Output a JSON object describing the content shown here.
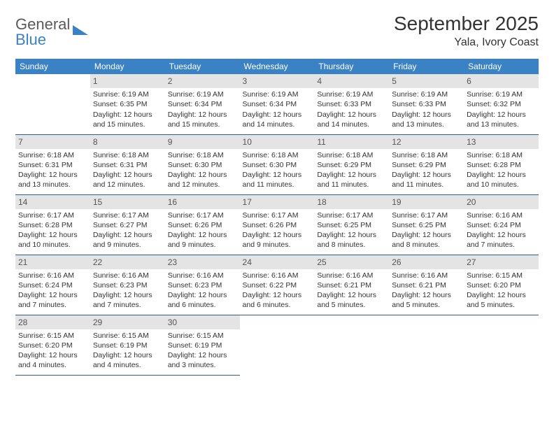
{
  "logo": {
    "word1": "General",
    "word2": "Blue"
  },
  "title": "September 2025",
  "location": "Yala, Ivory Coast",
  "colors": {
    "header_bg": "#3b82c4",
    "header_text": "#ffffff",
    "daynum_bg": "#e4e4e4",
    "row_border": "#2f5e8a",
    "text": "#333333"
  },
  "daysOfWeek": [
    "Sunday",
    "Monday",
    "Tuesday",
    "Wednesday",
    "Thursday",
    "Friday",
    "Saturday"
  ],
  "weeks": [
    [
      null,
      {
        "n": "1",
        "sr": "6:19 AM",
        "ss": "6:35 PM",
        "dl": "12 hours and 15 minutes."
      },
      {
        "n": "2",
        "sr": "6:19 AM",
        "ss": "6:34 PM",
        "dl": "12 hours and 15 minutes."
      },
      {
        "n": "3",
        "sr": "6:19 AM",
        "ss": "6:34 PM",
        "dl": "12 hours and 14 minutes."
      },
      {
        "n": "4",
        "sr": "6:19 AM",
        "ss": "6:33 PM",
        "dl": "12 hours and 14 minutes."
      },
      {
        "n": "5",
        "sr": "6:19 AM",
        "ss": "6:33 PM",
        "dl": "12 hours and 13 minutes."
      },
      {
        "n": "6",
        "sr": "6:19 AM",
        "ss": "6:32 PM",
        "dl": "12 hours and 13 minutes."
      }
    ],
    [
      {
        "n": "7",
        "sr": "6:18 AM",
        "ss": "6:31 PM",
        "dl": "12 hours and 13 minutes."
      },
      {
        "n": "8",
        "sr": "6:18 AM",
        "ss": "6:31 PM",
        "dl": "12 hours and 12 minutes."
      },
      {
        "n": "9",
        "sr": "6:18 AM",
        "ss": "6:30 PM",
        "dl": "12 hours and 12 minutes."
      },
      {
        "n": "10",
        "sr": "6:18 AM",
        "ss": "6:30 PM",
        "dl": "12 hours and 11 minutes."
      },
      {
        "n": "11",
        "sr": "6:18 AM",
        "ss": "6:29 PM",
        "dl": "12 hours and 11 minutes."
      },
      {
        "n": "12",
        "sr": "6:18 AM",
        "ss": "6:29 PM",
        "dl": "12 hours and 11 minutes."
      },
      {
        "n": "13",
        "sr": "6:18 AM",
        "ss": "6:28 PM",
        "dl": "12 hours and 10 minutes."
      }
    ],
    [
      {
        "n": "14",
        "sr": "6:17 AM",
        "ss": "6:28 PM",
        "dl": "12 hours and 10 minutes."
      },
      {
        "n": "15",
        "sr": "6:17 AM",
        "ss": "6:27 PM",
        "dl": "12 hours and 9 minutes."
      },
      {
        "n": "16",
        "sr": "6:17 AM",
        "ss": "6:26 PM",
        "dl": "12 hours and 9 minutes."
      },
      {
        "n": "17",
        "sr": "6:17 AM",
        "ss": "6:26 PM",
        "dl": "12 hours and 9 minutes."
      },
      {
        "n": "18",
        "sr": "6:17 AM",
        "ss": "6:25 PM",
        "dl": "12 hours and 8 minutes."
      },
      {
        "n": "19",
        "sr": "6:17 AM",
        "ss": "6:25 PM",
        "dl": "12 hours and 8 minutes."
      },
      {
        "n": "20",
        "sr": "6:16 AM",
        "ss": "6:24 PM",
        "dl": "12 hours and 7 minutes."
      }
    ],
    [
      {
        "n": "21",
        "sr": "6:16 AM",
        "ss": "6:24 PM",
        "dl": "12 hours and 7 minutes."
      },
      {
        "n": "22",
        "sr": "6:16 AM",
        "ss": "6:23 PM",
        "dl": "12 hours and 7 minutes."
      },
      {
        "n": "23",
        "sr": "6:16 AM",
        "ss": "6:23 PM",
        "dl": "12 hours and 6 minutes."
      },
      {
        "n": "24",
        "sr": "6:16 AM",
        "ss": "6:22 PM",
        "dl": "12 hours and 6 minutes."
      },
      {
        "n": "25",
        "sr": "6:16 AM",
        "ss": "6:21 PM",
        "dl": "12 hours and 5 minutes."
      },
      {
        "n": "26",
        "sr": "6:16 AM",
        "ss": "6:21 PM",
        "dl": "12 hours and 5 minutes."
      },
      {
        "n": "27",
        "sr": "6:15 AM",
        "ss": "6:20 PM",
        "dl": "12 hours and 5 minutes."
      }
    ],
    [
      {
        "n": "28",
        "sr": "6:15 AM",
        "ss": "6:20 PM",
        "dl": "12 hours and 4 minutes."
      },
      {
        "n": "29",
        "sr": "6:15 AM",
        "ss": "6:19 PM",
        "dl": "12 hours and 4 minutes."
      },
      {
        "n": "30",
        "sr": "6:15 AM",
        "ss": "6:19 PM",
        "dl": "12 hours and 3 minutes."
      },
      null,
      null,
      null,
      null
    ]
  ],
  "labels": {
    "sunrise": "Sunrise:",
    "sunset": "Sunset:",
    "daylight": "Daylight:"
  }
}
